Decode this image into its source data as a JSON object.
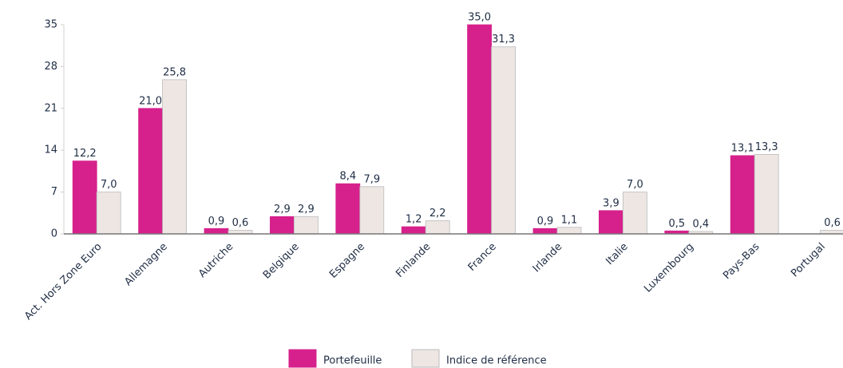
{
  "chart_data": {
    "type": "bar",
    "categories": [
      "Act. Hors Zone Euro",
      "Allemagne",
      "Autriche",
      "Belgique",
      "Espagne",
      "Finlande",
      "France",
      "Irlande",
      "Italie",
      "Luxembourg",
      "Pays-Bas",
      "Portugal"
    ],
    "series": [
      {
        "name": "Portefeuille",
        "color": "#d6218c",
        "values": [
          12.2,
          21.0,
          0.9,
          2.9,
          8.4,
          1.2,
          35.0,
          0.9,
          3.9,
          0.5,
          13.1,
          0
        ],
        "value_labels": [
          "12,2",
          "21,0",
          "0,9",
          "2,9",
          "8,4",
          "1,2",
          "35,0",
          "0,9",
          "3,9",
          "0,5",
          "13,1",
          null
        ]
      },
      {
        "name": "Indice de référence",
        "color": "#ede6e3",
        "values": [
          7.0,
          25.8,
          0.6,
          2.9,
          7.9,
          2.2,
          31.3,
          1.1,
          7.0,
          0.4,
          13.3,
          0.6
        ],
        "value_labels": [
          "7,0",
          "25,8",
          "0,6",
          "2,9",
          "7,9",
          "2,2",
          "31,3",
          "1,1",
          "7,0",
          "0,4",
          "13,3",
          "0,6"
        ]
      }
    ],
    "ylim": [
      0,
      35
    ],
    "yticks": [
      0,
      7,
      14,
      21,
      28,
      35
    ],
    "grid": false,
    "legend": "bottom"
  }
}
